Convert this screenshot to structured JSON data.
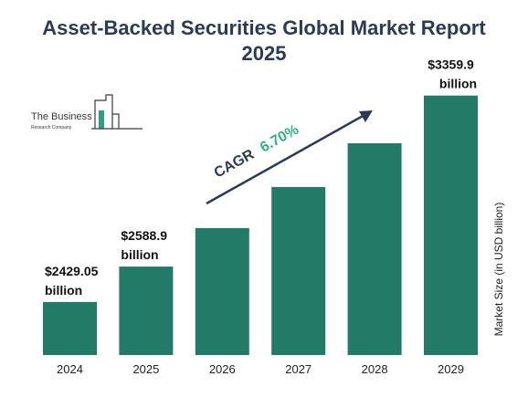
{
  "logo": {
    "line1": "The Business",
    "line2": "Research Company"
  },
  "cagr": {
    "label": "CAGR",
    "value": "6.70%"
  },
  "colors": {
    "bar": "#237a67",
    "title": "#2b3a56",
    "cagr_value": "#33b07f",
    "text": "#111111",
    "logo": "#3a3a3a",
    "logo_bar": "#2e9d84"
  },
  "chart_data": {
    "type": "bar",
    "title": "Asset-Backed Securities Global Market Report 2025",
    "title_lines": [
      "Asset-Backed Securities Global Market Report",
      "2025"
    ],
    "categories": [
      "2024",
      "2025",
      "2026",
      "2027",
      "2028",
      "2029"
    ],
    "values": [
      2429.05,
      2588.9,
      2762.4,
      2947.5,
      3145.0,
      3359.9
    ],
    "data_labels": [
      [
        "$2429.05",
        "billion"
      ],
      [
        "$2588.9",
        "billion"
      ],
      null,
      null,
      null,
      [
        "$3359.9",
        "billion"
      ]
    ],
    "xlabel": "",
    "ylabel": "Market Size (in USD billion)",
    "ylim": [
      2190,
      3400
    ],
    "grid": false,
    "legend": "none"
  }
}
